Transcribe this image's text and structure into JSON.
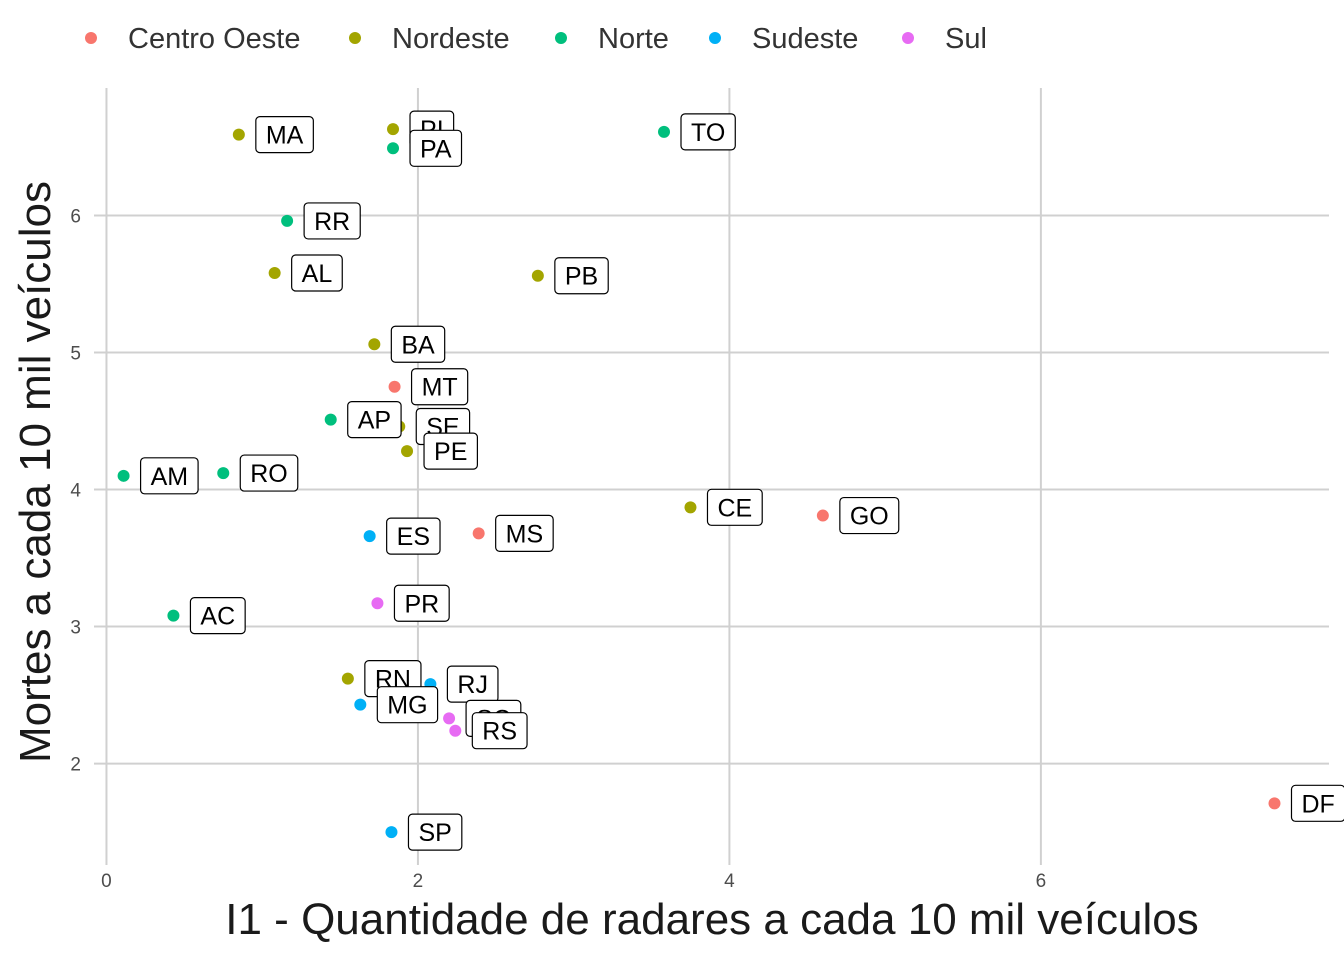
{
  "chart_data": {
    "type": "scatter",
    "xlabel": "I1 - Quantidade de radares a cada 10 mil veículos",
    "ylabel": "Mortes a cada 10 mil veículos",
    "xlim": [
      -0.08,
      7.85
    ],
    "ylim": [
      1.26,
      6.93
    ],
    "x_ticks": [
      0,
      2,
      4,
      6
    ],
    "y_ticks": [
      2,
      3,
      4,
      5,
      6
    ],
    "grid": true,
    "legend_position": "top",
    "legend": [
      {
        "name": "Centro Oeste",
        "color": "#F8766D"
      },
      {
        "name": "Nordeste",
        "color": "#A3A500"
      },
      {
        "name": "Norte",
        "color": "#00BF7D"
      },
      {
        "name": "Sudeste",
        "color": "#00B0F6"
      },
      {
        "name": "Sul",
        "color": "#E76BF3"
      }
    ],
    "points": [
      {
        "label": "MA",
        "region": "Nordeste",
        "x": 0.85,
        "y": 6.59
      },
      {
        "label": "PI",
        "region": "Nordeste",
        "x": 1.84,
        "y": 6.63
      },
      {
        "label": "PA",
        "region": "Norte",
        "x": 1.84,
        "y": 6.49
      },
      {
        "label": "TO",
        "region": "Norte",
        "x": 3.58,
        "y": 6.61
      },
      {
        "label": "RR",
        "region": "Norte",
        "x": 1.16,
        "y": 5.96
      },
      {
        "label": "AL",
        "region": "Nordeste",
        "x": 1.08,
        "y": 5.58
      },
      {
        "label": "PB",
        "region": "Nordeste",
        "x": 2.77,
        "y": 5.56
      },
      {
        "label": "BA",
        "region": "Nordeste",
        "x": 1.72,
        "y": 5.06
      },
      {
        "label": "MT",
        "region": "Centro Oeste",
        "x": 1.85,
        "y": 4.75
      },
      {
        "label": "AP",
        "region": "Norte",
        "x": 1.44,
        "y": 4.51
      },
      {
        "label": "SE",
        "region": "Nordeste",
        "x": 1.88,
        "y": 4.46
      },
      {
        "label": "PE",
        "region": "Nordeste",
        "x": 1.93,
        "y": 4.28
      },
      {
        "label": "AM",
        "region": "Norte",
        "x": 0.11,
        "y": 4.1
      },
      {
        "label": "RO",
        "region": "Norte",
        "x": 0.75,
        "y": 4.12
      },
      {
        "label": "CE",
        "region": "Nordeste",
        "x": 3.75,
        "y": 3.87
      },
      {
        "label": "GO",
        "region": "Centro Oeste",
        "x": 4.6,
        "y": 3.81
      },
      {
        "label": "ES",
        "region": "Sudeste",
        "x": 1.69,
        "y": 3.66
      },
      {
        "label": "MS",
        "region": "Centro Oeste",
        "x": 2.39,
        "y": 3.68
      },
      {
        "label": "PR",
        "region": "Sul",
        "x": 1.74,
        "y": 3.17
      },
      {
        "label": "AC",
        "region": "Norte",
        "x": 0.43,
        "y": 3.08
      },
      {
        "label": "RN",
        "region": "Nordeste",
        "x": 1.55,
        "y": 2.62
      },
      {
        "label": "RJ",
        "region": "Sudeste",
        "x": 2.08,
        "y": 2.58
      },
      {
        "label": "MG",
        "region": "Sudeste",
        "x": 1.63,
        "y": 2.43
      },
      {
        "label": "SC",
        "region": "Sul",
        "x": 2.2,
        "y": 2.33
      },
      {
        "label": "RS",
        "region": "Sul",
        "x": 2.24,
        "y": 2.24
      },
      {
        "label": "DF",
        "region": "Centro Oeste",
        "x": 7.5,
        "y": 1.71
      },
      {
        "label": "SP",
        "region": "Sudeste",
        "x": 1.83,
        "y": 1.5
      }
    ]
  }
}
